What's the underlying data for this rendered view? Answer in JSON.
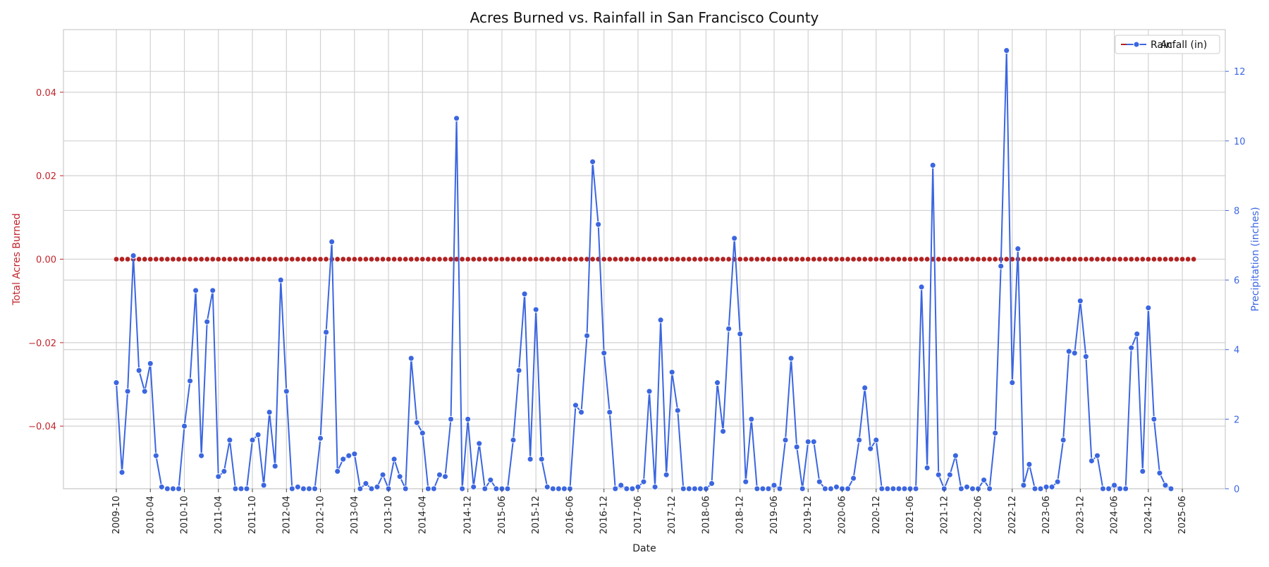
{
  "chart_data": {
    "type": "line",
    "title": "Acres Burned vs. Rainfall in San Francisco County",
    "xlabel": "Date",
    "ylabel_left": "Total Acres Burned",
    "ylabel_right": "Precipitation (inches)",
    "y_left_range": [
      -0.055,
      0.055
    ],
    "y_left_ticks": [
      -0.04,
      -0.02,
      0.0,
      0.02,
      0.04
    ],
    "y_left_tick_labels": [
      "−0.04",
      "−0.02",
      "0.00",
      "0.02",
      "0.04"
    ],
    "y_right_range": [
      0,
      13.2
    ],
    "y_right_ticks": [
      0,
      2,
      4,
      6,
      8,
      10,
      12
    ],
    "y_right_tick_labels": [
      "0",
      "2",
      "4",
      "6",
      "8",
      "10",
      "12"
    ],
    "x_start": "2009-10",
    "x_tick_labels": [
      "2009-10",
      "2010-04",
      "2010-10",
      "2011-04",
      "2011-10",
      "2012-04",
      "2012-10",
      "2013-04",
      "2013-10",
      "2014-04",
      "2014-12",
      "2015-06",
      "2015-12",
      "2016-06",
      "2016-12",
      "2017-06",
      "2017-12",
      "2018-06",
      "2018-12",
      "2019-06",
      "2019-12",
      "2020-06",
      "2020-12",
      "2021-06",
      "2021-12",
      "2022-06",
      "2022-12",
      "2023-06",
      "2023-12",
      "2024-06",
      "2024-12",
      "2025-06"
    ],
    "grid": true,
    "legend_position": "top-right",
    "legend": [
      {
        "label": "Acres Burned",
        "color": "#b22222",
        "visible_text": "Ac"
      },
      {
        "label": "Rainfall (in)",
        "color": "#3b66e0"
      }
    ],
    "colors": {
      "acres": "#b22222",
      "rain": "#3b66e0",
      "left_axis": "#c0262d",
      "right_axis": "#3b66e0"
    },
    "series": [
      {
        "name": "Acres Burned",
        "axis": "left",
        "values": [
          0,
          0,
          0,
          0,
          0,
          0,
          0,
          0,
          0,
          0,
          0,
          0,
          0,
          0,
          0,
          0,
          0,
          0,
          0,
          0,
          0,
          0,
          0,
          0,
          0,
          0,
          0,
          0,
          0,
          0,
          0,
          0,
          0,
          0,
          0,
          0,
          0,
          0,
          0,
          0,
          0,
          0,
          0,
          0,
          0,
          0,
          0,
          0,
          0,
          0,
          0,
          0,
          0,
          0,
          0,
          0,
          0,
          0,
          0,
          0,
          0,
          0,
          0,
          0,
          0,
          0,
          0,
          0,
          0,
          0,
          0,
          0,
          0,
          0,
          0,
          0,
          0,
          0,
          0,
          0,
          0,
          0,
          0,
          0,
          0,
          0,
          0,
          0,
          0,
          0,
          0,
          0,
          0,
          0,
          0,
          0,
          0,
          0,
          0,
          0,
          0,
          0,
          0,
          0,
          0,
          0,
          0,
          0,
          0,
          0,
          0,
          0,
          0,
          0,
          0,
          0,
          0,
          0,
          0,
          0,
          0,
          0,
          0,
          0,
          0,
          0,
          0,
          0,
          0,
          0,
          0,
          0,
          0,
          0,
          0,
          0,
          0,
          0,
          0,
          0,
          0,
          0,
          0,
          0,
          0,
          0,
          0,
          0,
          0,
          0,
          0,
          0,
          0,
          0,
          0,
          0,
          0,
          0,
          0,
          0,
          0,
          0,
          0,
          0,
          0,
          0,
          0,
          0,
          0,
          0,
          0,
          0,
          0,
          0,
          0,
          0,
          0,
          0,
          0,
          0,
          0,
          0,
          0,
          0,
          0,
          0,
          0,
          0,
          0,
          0,
          0
        ]
      },
      {
        "name": "Rainfall (in)",
        "axis": "right",
        "values": [
          3.05,
          0.47,
          2.8,
          6.7,
          3.4,
          2.8,
          3.6,
          0.95,
          0.05,
          0,
          0,
          0,
          1.8,
          3.1,
          5.7,
          0.95,
          4.8,
          5.7,
          0.35,
          0.5,
          1.4,
          0,
          0,
          0,
          1.4,
          1.55,
          0.1,
          2.2,
          0.65,
          6,
          2.8,
          0,
          0.05,
          0,
          0,
          0,
          1.45,
          4.5,
          7.1,
          0.5,
          0.85,
          0.95,
          1,
          0,
          0.15,
          0,
          0.05,
          0.4,
          0,
          0.85,
          0.35,
          0,
          3.75,
          1.9,
          1.6,
          0,
          0,
          0.4,
          0.35,
          2,
          10.65,
          0,
          2,
          0.05,
          1.3,
          0,
          0.25,
          0,
          0,
          0,
          1.4,
          3.4,
          5.6,
          0.85,
          5.15,
          0.85,
          0.05,
          0,
          0,
          0,
          0,
          2.4,
          2.2,
          4.4,
          9.4,
          7.6,
          3.9,
          2.2,
          0,
          0.1,
          0,
          0,
          0.05,
          0.2,
          2.8,
          0.05,
          4.85,
          0.4,
          3.35,
          2.25,
          0,
          0,
          0,
          0,
          0,
          0.15,
          3.05,
          1.65,
          4.6,
          7.2,
          4.45,
          0.2,
          2,
          0,
          0,
          0,
          0.1,
          0,
          1.4,
          3.75,
          1.2,
          0,
          1.35,
          1.35,
          0.2,
          0,
          0,
          0.05,
          0,
          0,
          0.3,
          1.4,
          2.9,
          1.15,
          1.4,
          0,
          0,
          0,
          0,
          0,
          0,
          0,
          5.8,
          0.6,
          9.3,
          0.4,
          0,
          0.4,
          0.95,
          0,
          0.05,
          0,
          0,
          0.25,
          0,
          1.6,
          6.4,
          12.6,
          3.05,
          6.9,
          0.1,
          0.7,
          0,
          0,
          0.05,
          0.05,
          0.2,
          1.4,
          3.95,
          3.9,
          5.4,
          3.8,
          0.8,
          0.95,
          0,
          0,
          0.1,
          0,
          0,
          4.05,
          4.45,
          0.5,
          5.2,
          2,
          0.45,
          0.1,
          0
        ]
      }
    ]
  }
}
